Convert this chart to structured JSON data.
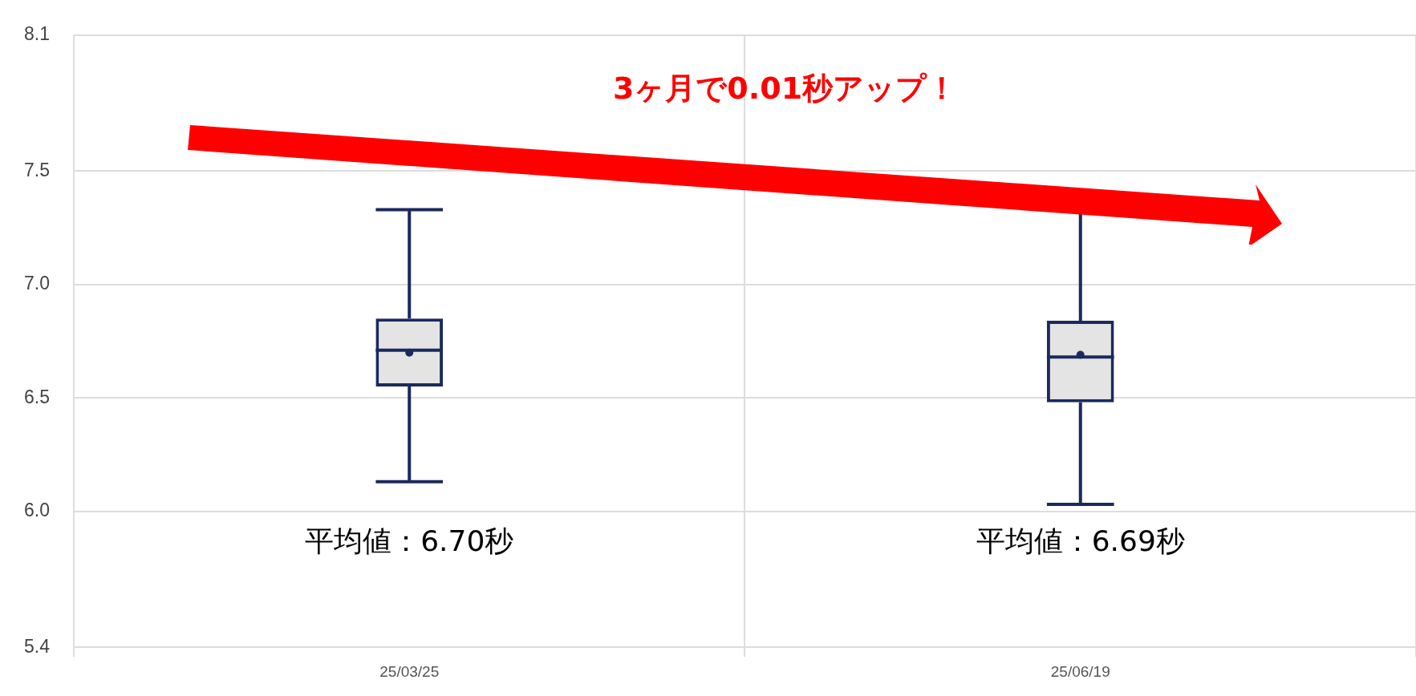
{
  "chart_data": {
    "type": "box",
    "categories": [
      "25/03/25",
      "25/06/19"
    ],
    "series": [
      {
        "color": "#1b2a5e",
        "boxes": [
          {
            "low": 6.13,
            "q1": 6.55,
            "median": 6.71,
            "q3": 6.85,
            "high": 7.33,
            "mean": 6.7
          },
          {
            "low": 6.03,
            "q1": 6.48,
            "median": 6.68,
            "q3": 6.84,
            "high": 7.39,
            "mean": 6.69
          }
        ]
      }
    ],
    "ylim": [
      5.4,
      8.1
    ],
    "yticks": [
      5.4,
      {
        "value": 6,
        "label": "6.0"
      },
      6.5,
      {
        "value": 7,
        "label": "7.0"
      },
      7.5,
      8.1
    ],
    "grid": true,
    "legend": false,
    "annotations": [
      "3ヶ月で0.01秒アップ！",
      "平均値：6.70秒",
      "平均値：6.69秒"
    ]
  }
}
